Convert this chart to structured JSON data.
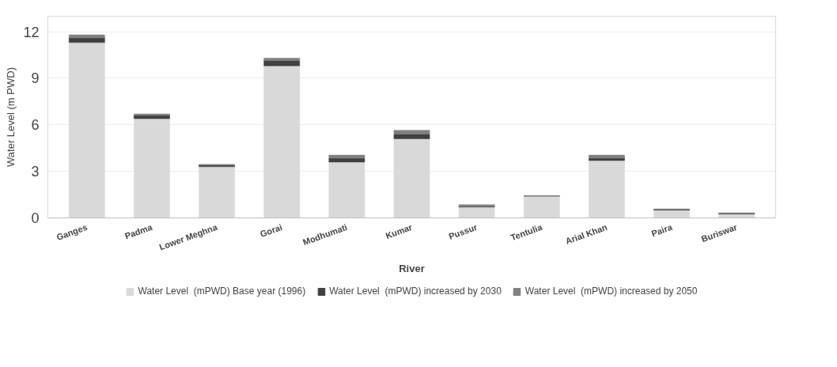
{
  "chart_data": {
    "type": "bar",
    "stacked": true,
    "xlabel": "River",
    "ylabel": "Water Level (m PWD)",
    "categories": [
      "Ganges",
      "Padma",
      "Lower Meghna",
      "Gorai",
      "Modhumati",
      "Kumar",
      "Pussur",
      "Tentulia",
      "Arial Khan",
      "Paira",
      "Buriswar"
    ],
    "series": [
      {
        "name": "Water Level  (mPWD) Base year (1996)",
        "color": "#d9d9d9",
        "values": [
          11.3,
          6.4,
          3.3,
          9.8,
          3.6,
          5.1,
          0.7,
          1.4,
          3.7,
          0.5,
          0.25
        ]
      },
      {
        "name": "Water Level  (mPWD) increased by 2030",
        "color": "#404040",
        "values": [
          0.3,
          0.2,
          0.1,
          0.35,
          0.25,
          0.3,
          0.05,
          0.02,
          0.15,
          0.03,
          0.05
        ]
      },
      {
        "name": "Water Level  (mPWD) increased by 2050",
        "color": "#808080",
        "values": [
          0.2,
          0.1,
          0.05,
          0.15,
          0.2,
          0.25,
          0.1,
          0.02,
          0.2,
          0.05,
          0.03
        ]
      }
    ],
    "ylim": [
      0,
      13
    ],
    "yticks": [
      0,
      3,
      6,
      9,
      12
    ],
    "grid": "y",
    "legend": "bottom"
  }
}
